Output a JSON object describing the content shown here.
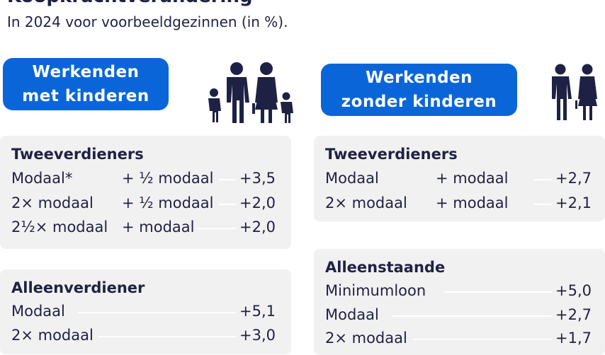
{
  "header": {
    "title": "Koopkrachtverandering",
    "subtitle": "In 2024 voor voorbeeldgezinnen (in %)."
  },
  "groups": {
    "left": {
      "line1": "Werkenden",
      "line2": "met kinderen",
      "icon": "family-with-children-icon"
    },
    "right": {
      "line1": "Werkenden",
      "line2": "zonder kinderen",
      "icon": "couple-icon"
    }
  },
  "panels": {
    "tweeverdieners_kids": {
      "heading": "Tweeverdieners",
      "rows": [
        {
          "income": "Modaal*",
          "partner": "+ ½ modaal",
          "value": "+3,5"
        },
        {
          "income": "2× modaal",
          "partner": "+ ½ modaal",
          "value": "+2,0"
        },
        {
          "income": "2½× modaal",
          "partner": "+ modaal",
          "value": "+2,0"
        }
      ]
    },
    "alleenverdiener": {
      "heading": "Alleenverdiener",
      "rows": [
        {
          "income": "Modaal",
          "value": "+5,1"
        },
        {
          "income": "2× modaal",
          "value": "+3,0"
        }
      ]
    },
    "tweeverdieners_nokids": {
      "heading": "Tweeverdieners",
      "rows": [
        {
          "income": "Modaal",
          "partner": "+ modaal",
          "value": "+2,7"
        },
        {
          "income": "2× modaal",
          "partner": "+ modaal",
          "value": "+2,1"
        }
      ]
    },
    "alleenstaande": {
      "heading": "Alleenstaande",
      "rows": [
        {
          "income": "Minimumloon",
          "value": "+5,0"
        },
        {
          "income": "Modaal",
          "value": "+2,7"
        },
        {
          "income": "2× modaal",
          "value": "+1,7"
        }
      ]
    }
  },
  "colors": {
    "accent": "#0a66d8",
    "text": "#1f2144",
    "panel": "#f1f1f1"
  }
}
